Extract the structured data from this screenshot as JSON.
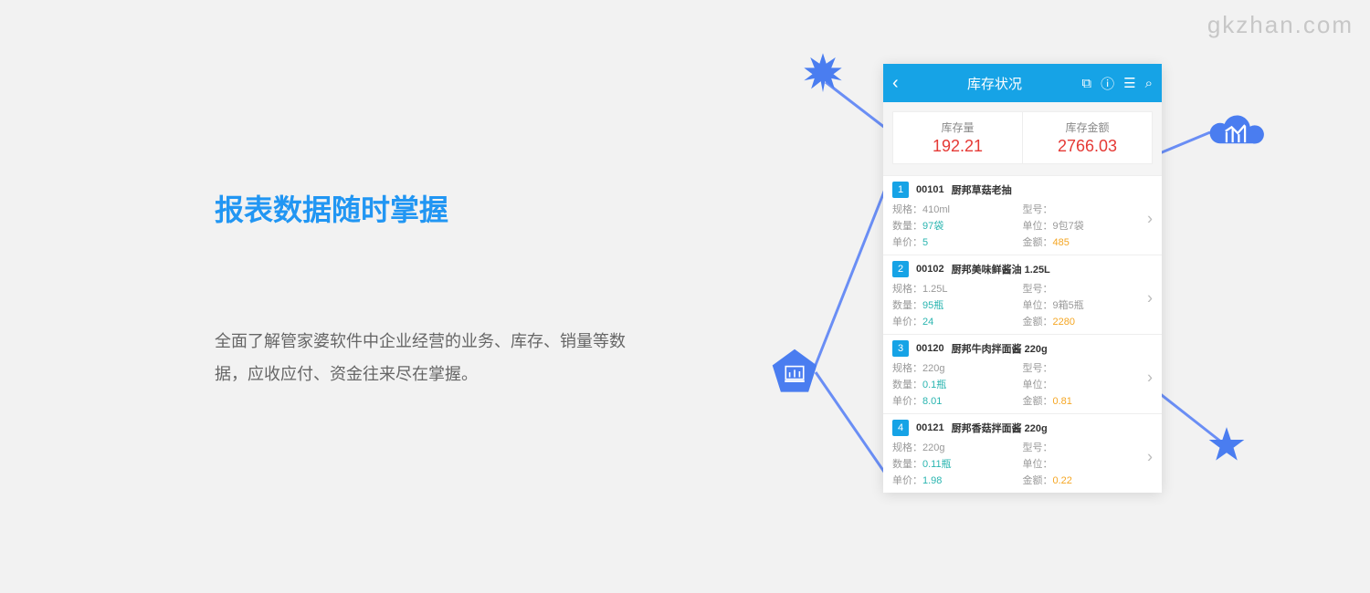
{
  "watermark": "gkzhan.com",
  "headline": "报表数据随时掌握",
  "body": "全面了解管家婆软件中企业经营的业务、库存、销量等数据，应收应付、资金往来尽在掌握。",
  "phone": {
    "title": "库存状况",
    "summary": [
      {
        "label": "库存量",
        "value": "192.21"
      },
      {
        "label": "库存金额",
        "value": "2766.03"
      }
    ],
    "labels": {
      "spec": "规格：",
      "model": "型号：",
      "qty": "数量：",
      "unit": "单位：",
      "price": "单价：",
      "amount": "金额："
    },
    "items": [
      {
        "n": "1",
        "code": "00101",
        "name": "厨邦草菇老抽",
        "spec": "410ml",
        "model": "",
        "qty": "97袋",
        "unit": "9包7袋",
        "price": "5",
        "amount": "485"
      },
      {
        "n": "2",
        "code": "00102",
        "name": "厨邦美味鲜酱油 1.25L",
        "spec": "1.25L",
        "model": "",
        "qty": "95瓶",
        "unit": "9箱5瓶",
        "price": "24",
        "amount": "2280"
      },
      {
        "n": "3",
        "code": "00120",
        "name": "厨邦牛肉拌面酱 220g",
        "spec": "220g",
        "model": "",
        "qty": "0.1瓶",
        "unit": "",
        "price": "8.01",
        "amount": "0.81"
      },
      {
        "n": "4",
        "code": "00121",
        "name": "厨邦香菇拌面酱 220g",
        "spec": "220g",
        "model": "",
        "qty": "0.11瓶",
        "unit": "",
        "price": "1.98",
        "amount": "0.22"
      }
    ]
  },
  "colors": {
    "accent": "#16a3e6",
    "blue": "#4a7df0",
    "red": "#e53935",
    "teal": "#2ab5b0",
    "orange": "#f5a623"
  }
}
